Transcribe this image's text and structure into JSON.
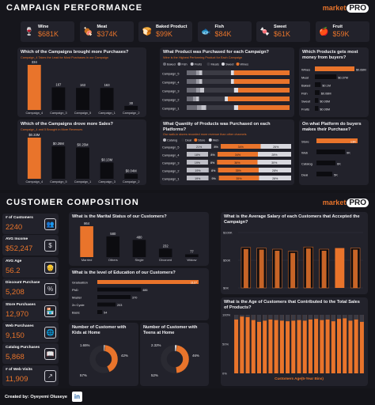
{
  "campaign": {
    "title": "CAMPAIGN PERFORMANCE",
    "logo_text": "market",
    "logo_badge": "PRO",
    "kpis": [
      {
        "label": "Wine",
        "value": "$681K",
        "icon": "wine-glass-icon",
        "glyph": "🍷"
      },
      {
        "label": "Meat",
        "value": "$374K",
        "icon": "meat-icon",
        "glyph": "🍖"
      },
      {
        "label": "Baked Product",
        "value": "$99K",
        "icon": "bread-icon",
        "glyph": "🍞"
      },
      {
        "label": "Fish",
        "value": "$84K",
        "icon": "fish-icon",
        "glyph": "🐟"
      },
      {
        "label": "Sweet",
        "value": "$61K",
        "icon": "candy-icon",
        "glyph": "🍬"
      },
      {
        "label": "Fruit",
        "value": "$59K",
        "icon": "fruit-icon",
        "glyph": "🍎"
      }
    ]
  },
  "composition": {
    "title": "CUSTOMER COMPOSITION",
    "logo_text": "market",
    "logo_badge": "PRO",
    "kpis": [
      {
        "label": "# of Customers",
        "value": "2240",
        "icon": "people-icon",
        "glyph": "👥"
      },
      {
        "label": "AVG Income",
        "value": "$52,247",
        "icon": "money-icon",
        "glyph": "$"
      },
      {
        "label": "AVG Age",
        "value": "56.2",
        "icon": "elderly-icon",
        "glyph": "👴"
      },
      {
        "label": "Discount Purchase",
        "value": "5,208",
        "icon": "discount-icon",
        "glyph": "%"
      },
      {
        "label": "Store Purchases",
        "value": "12,970",
        "icon": "store-icon",
        "glyph": "🏪"
      },
      {
        "label": "Web Purchases",
        "value": "9,150",
        "icon": "web-icon",
        "glyph": "🌐"
      },
      {
        "label": "Catalog Purchases",
        "value": "5,868",
        "icon": "catalog-icon",
        "glyph": "📖"
      },
      {
        "label": "# of Web Visits",
        "value": "11,909",
        "icon": "visits-icon",
        "glyph": "↗"
      }
    ]
  },
  "footer": {
    "credit": "Created by: Oyeyemi Oluseye",
    "linkedin": "in"
  },
  "colors": {
    "accent": "#e9742b",
    "dark_bar": "#0c0c10",
    "panel": "#22222b",
    "grey": "#8a8a95"
  },
  "chart_data": [
    {
      "id": "purchases",
      "type": "bar",
      "title": "Which of the Campaigns brought more Purchases?",
      "subtitle": "Campaign_4 Takes the Lead for Most Purchases in our Campaign",
      "categories": [
        "Campaign_4",
        "Campaign_3",
        "Campaign_5",
        "Campaign_1",
        "Campaign_2"
      ],
      "values": [
        334,
        167,
        163,
        163,
        30
      ],
      "labels": [
        "334",
        "167",
        "163",
        "163",
        "30"
      ]
    },
    {
      "id": "sales",
      "type": "bar",
      "title": "Which of the Campaigns drove more Sales?",
      "subtitle": "Campaign_4 and 5 Brought in More Revenues",
      "categories": [
        "Campaign_4",
        "Campaign_5",
        "Campaign_1",
        "Campaign_3",
        "Campaign_2"
      ],
      "values": [
        0.33,
        0.26,
        0.25,
        0.13,
        0.04
      ],
      "labels": [
        "$0.33M",
        "$0.26M",
        "$0.25M",
        "$0.13M",
        "$0.04M"
      ]
    },
    {
      "id": "products_purchased",
      "type": "bar",
      "title": "What Product was Purchased for each Campaign?",
      "subtitle": "Wine is the Highest Performing Product for Each Campaign",
      "legend": [
        "Baked",
        "Fish",
        "Fruits",
        "Meats",
        "Sweet",
        "Wines"
      ],
      "categories": [
        "Campaign_5",
        "Campaign_4",
        "Campaign_3",
        "Campaign_2",
        "Campaign_1"
      ],
      "series": [
        {
          "name": "Baked",
          "values": [
            9,
            9,
            9,
            6,
            10
          ]
        },
        {
          "name": "Fish",
          "values": [
            3,
            3,
            4,
            3,
            4
          ]
        },
        {
          "name": "Fruits",
          "values": [
            3,
            3,
            4,
            3,
            5
          ]
        },
        {
          "name": "Meats",
          "values": [
            28,
            28,
            29,
            25,
            27
          ]
        },
        {
          "name": "Sweet",
          "values": [
            3,
            3,
            4,
            3,
            4
          ]
        },
        {
          "name": "Wines",
          "values": [
            54,
            54,
            50,
            60,
            50
          ]
        }
      ]
    },
    {
      "id": "channel_quantity",
      "type": "bar",
      "title": "What Quantity of Products was Purchased on each Platforms?",
      "subtitle": "Our walk-in stores recorded more revenue than other channels",
      "legend": [
        "Catalog",
        "Deal",
        "Store",
        "Web"
      ],
      "categories": [
        "Campaign_5",
        "Campaign_4",
        "Campaign_3",
        "Campaign_2",
        "Campaign_1"
      ],
      "series": [
        {
          "name": "Catalog",
          "values": [
            21,
            18,
            19,
            19,
            19
          ]
        },
        {
          "name": "Deal",
          "values": [
            8,
            8,
            8,
            8,
            9
          ]
        },
        {
          "name": "Store",
          "values": [
            34,
            34,
            36,
            35,
            35
          ]
        },
        {
          "name": "Web",
          "values": [
            26,
            28,
            30,
            28,
            28
          ]
        }
      ],
      "labels": [
        [
          "21%",
          "8%",
          "34%",
          "26%"
        ],
        [
          "18%",
          "8%",
          "34%",
          "28%"
        ],
        [
          "19%",
          "8%",
          "36%",
          "30%"
        ],
        [
          "19%",
          "8%",
          "35%",
          "28%"
        ],
        [
          "19%",
          "9%",
          "35%",
          "28%"
        ]
      ]
    },
    {
      "id": "product_money",
      "type": "bar",
      "title": "Which Products gets most money from buyers?",
      "categories": [
        "Wines",
        "Meat",
        "Baked",
        "Fish",
        "Sweet",
        "Fruits"
      ],
      "values": [
        0.68,
        0.37,
        0.1,
        0.08,
        0.06,
        0.06
      ],
      "labels": [
        "$0.68M",
        "$0.37M",
        "$0.1M",
        "$0.08M",
        "$0.06M",
        "$0.06M"
      ]
    },
    {
      "id": "platform",
      "type": "bar",
      "title": "On what Platform do buyers makes their Purchase?",
      "categories": [
        "Store",
        "Web",
        "Catalog",
        "Deal"
      ],
      "values": [
        13,
        9,
        6,
        5
      ],
      "labels": [
        "13K",
        "9K",
        "6K",
        "5K"
      ]
    },
    {
      "id": "marital",
      "type": "bar",
      "title": "What is the Marital Status of our Customers?",
      "categories": [
        "Married",
        "Others",
        "Single",
        "Divorced",
        "Widow"
      ],
      "values": [
        864,
        580,
        480,
        232,
        77
      ],
      "labels": [
        "864",
        "580",
        "480",
        "232",
        "77"
      ]
    },
    {
      "id": "education",
      "type": "bar",
      "title": "What is the level of Education of our Customers?",
      "categories": [
        "Graduation",
        "PhD",
        "Master",
        "2n Cycle",
        "Basic"
      ],
      "values": [
        1127,
        486,
        370,
        203,
        54
      ],
      "labels": [
        "1127",
        "486",
        "370",
        "203",
        "54"
      ]
    },
    {
      "id": "kids",
      "type": "pie",
      "title": "Number of Customer with Kids at Home",
      "labels": [
        "1.65%",
        "42%",
        "57%"
      ],
      "values": [
        1.65,
        42,
        57
      ]
    },
    {
      "id": "teens",
      "type": "pie",
      "title": "Number of Customer with Teens at Home",
      "labels": [
        "2.32%",
        "46%",
        "52%"
      ],
      "values": [
        2.32,
        46,
        52
      ]
    },
    {
      "id": "salary",
      "type": "bar",
      "title": "What is the Average Salary of each Customers that Accepted the Campaign?",
      "yticks": [
        "$100K",
        "$50K",
        "$0K"
      ],
      "ylim": [
        0,
        100000
      ],
      "values": [
        73000,
        72000,
        70000,
        66000,
        74000,
        70000,
        72000,
        72000
      ]
    },
    {
      "id": "age_sales",
      "type": "bar",
      "title": "What is the Age of Customers that Contributed to the Total Sales of Products?",
      "xlabel": "Customers Age(5-Year Bins)",
      "yticks": [
        "100%",
        "50%",
        "0%"
      ],
      "values": [
        8,
        3,
        4,
        9,
        12,
        10,
        8,
        9,
        10,
        11,
        10,
        9,
        10,
        8,
        7,
        9,
        8,
        11,
        7,
        6,
        10,
        8,
        12
      ]
    }
  ]
}
